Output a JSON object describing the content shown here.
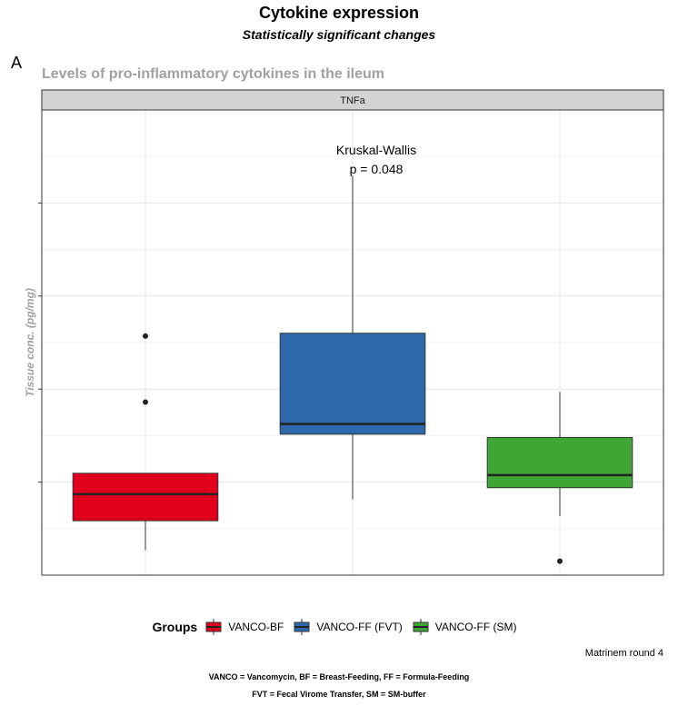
{
  "title": "Cytokine expression",
  "subtitle": "Statistically significant changes",
  "panel_tag": "A",
  "plot_title": "Levels of pro-inflammatory cytokines in the ileum",
  "caption": "Matrinem round 4",
  "footnotes": [
    "VANCO = Vancomycin, BF = Breast-Feeding, FF = Formula-Feeding",
    "FVT = Fecal Virome Transfer, SM = SM-buffer"
  ],
  "legend": {
    "title": "Groups",
    "items": [
      {
        "label": "VANCO-BF",
        "color": "#e0001b"
      },
      {
        "label": "VANCO-FF (FVT)",
        "color": "#2e6aab"
      },
      {
        "label": "VANCO-FF (SM)",
        "color": "#3fa535"
      }
    ]
  },
  "chart_data": {
    "type": "box",
    "facet": "TNFa",
    "ylabel": "Tissue conc. (pg/mg)",
    "y_tick_labels_visible": false,
    "ylim": [
      0,
      10
    ],
    "y_ticks": [
      2,
      4,
      6,
      8
    ],
    "grid": true,
    "annotation": {
      "text": [
        "Kruskal-Wallis",
        "p = 0.048"
      ],
      "group": "VANCO-FF (FVT)"
    },
    "groups": [
      {
        "name": "VANCO-BF",
        "color": "#e0001b",
        "whisker_low": 0.54,
        "q1": 1.17,
        "median": 1.74,
        "q3": 2.19,
        "whisker_high": 2.19,
        "outliers": [
          3.72,
          5.14
        ]
      },
      {
        "name": "VANCO-FF (FVT)",
        "color": "#2e6aab",
        "whisker_low": 1.63,
        "q1": 3.03,
        "median": 3.25,
        "q3": 5.2,
        "whisker_high": 8.59,
        "outliers": []
      },
      {
        "name": "VANCO-FF (SM)",
        "color": "#3fa535",
        "whisker_low": 1.27,
        "q1": 1.88,
        "median": 2.15,
        "q3": 2.96,
        "whisker_high": 3.94,
        "outliers": [
          0.3
        ]
      }
    ]
  }
}
